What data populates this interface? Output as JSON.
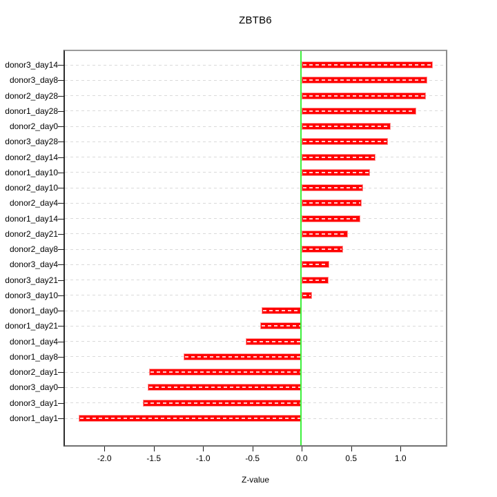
{
  "chart_data": {
    "type": "bar",
    "orientation": "horizontal",
    "title": "ZBTB6",
    "xlabel": "Z-value",
    "ylabel": "",
    "categories": [
      "donor3_day14",
      "donor3_day8",
      "donor2_day28",
      "donor1_day28",
      "donor2_day0",
      "donor3_day28",
      "donor2_day14",
      "donor1_day10",
      "donor2_day10",
      "donor2_day4",
      "donor1_day14",
      "donor2_day21",
      "donor2_day8",
      "donor3_day4",
      "donor3_day21",
      "donor3_day10",
      "donor1_day0",
      "donor1_day21",
      "donor1_day4",
      "donor1_day8",
      "donor2_day1",
      "donor3_day0",
      "donor3_day1",
      "donor1_day1"
    ],
    "values": [
      1.33,
      1.27,
      1.26,
      1.16,
      0.9,
      0.87,
      0.75,
      0.69,
      0.62,
      0.61,
      0.59,
      0.47,
      0.42,
      0.28,
      0.27,
      0.1,
      -0.41,
      -0.42,
      -0.57,
      -1.2,
      -1.55,
      -1.56,
      -1.61,
      -2.26
    ],
    "xlim": [
      -2.4,
      1.46
    ],
    "x_ticks": [
      -2.0,
      -1.5,
      -1.0,
      -0.5,
      0.0,
      0.5,
      1.0
    ],
    "x_tick_labels": [
      "-2.0",
      "-1.5",
      "-1.0",
      "-0.5",
      "0.0",
      "0.5",
      "1.0"
    ],
    "grid": true,
    "legend": "none",
    "colors": {
      "bar_fill": "#ff0000",
      "bar_border": "#ff9595",
      "bar_inner_dash": "#ffd2d2",
      "grid_line": "#d9d9d9",
      "zero_line": "#3bf03b",
      "axis_text": "#000000"
    }
  }
}
